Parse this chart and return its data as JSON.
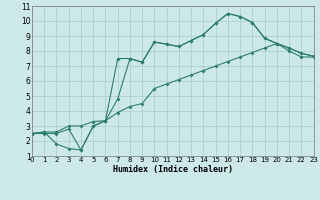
{
  "line1_x": [
    0,
    1,
    2,
    3,
    4,
    5,
    6,
    7,
    8,
    9,
    10,
    11,
    12,
    13,
    14,
    15,
    16,
    17,
    18,
    19,
    20,
    21,
    22,
    23
  ],
  "line1_y": [
    2.5,
    2.6,
    2.6,
    3.0,
    3.0,
    3.3,
    3.35,
    7.5,
    7.5,
    7.25,
    8.6,
    8.45,
    8.3,
    8.7,
    9.1,
    9.85,
    10.5,
    10.3,
    9.9,
    8.85,
    8.5,
    8.2,
    7.85,
    7.65
  ],
  "line2_x": [
    0,
    1,
    2,
    3,
    4,
    5,
    6,
    7,
    8,
    9,
    10,
    11,
    12,
    13,
    14,
    15,
    16,
    17,
    18,
    19,
    20,
    21,
    22,
    23
  ],
  "line2_y": [
    2.5,
    2.6,
    1.8,
    1.5,
    1.4,
    3.0,
    3.35,
    4.8,
    7.5,
    7.25,
    8.6,
    8.45,
    8.3,
    8.7,
    9.1,
    9.85,
    10.5,
    10.3,
    9.9,
    8.85,
    8.5,
    8.2,
    7.85,
    7.65
  ],
  "line3_x": [
    0,
    1,
    2,
    3,
    4,
    5,
    6,
    7,
    8,
    9,
    10,
    11,
    12,
    13,
    14,
    15,
    16,
    17,
    18,
    19,
    20,
    21,
    22,
    23
  ],
  "line3_y": [
    2.5,
    2.5,
    2.5,
    2.8,
    1.4,
    3.0,
    3.35,
    3.9,
    4.3,
    4.5,
    5.5,
    5.8,
    6.1,
    6.4,
    6.7,
    7.0,
    7.3,
    7.6,
    7.9,
    8.2,
    8.5,
    8.0,
    7.6,
    7.6
  ],
  "xlabel": "Humidex (Indice chaleur)",
  "xlim": [
    0,
    23
  ],
  "ylim": [
    1,
    11
  ],
  "xticks": [
    0,
    1,
    2,
    3,
    4,
    5,
    6,
    7,
    8,
    9,
    10,
    11,
    12,
    13,
    14,
    15,
    16,
    17,
    18,
    19,
    20,
    21,
    22,
    23
  ],
  "yticks": [
    1,
    2,
    3,
    4,
    5,
    6,
    7,
    8,
    9,
    10,
    11
  ],
  "bg_color": "#cce8e8",
  "line_color": "#2e7d6e",
  "grid_color": "#aacccc",
  "markersize": 2.0,
  "linewidth": 0.8
}
